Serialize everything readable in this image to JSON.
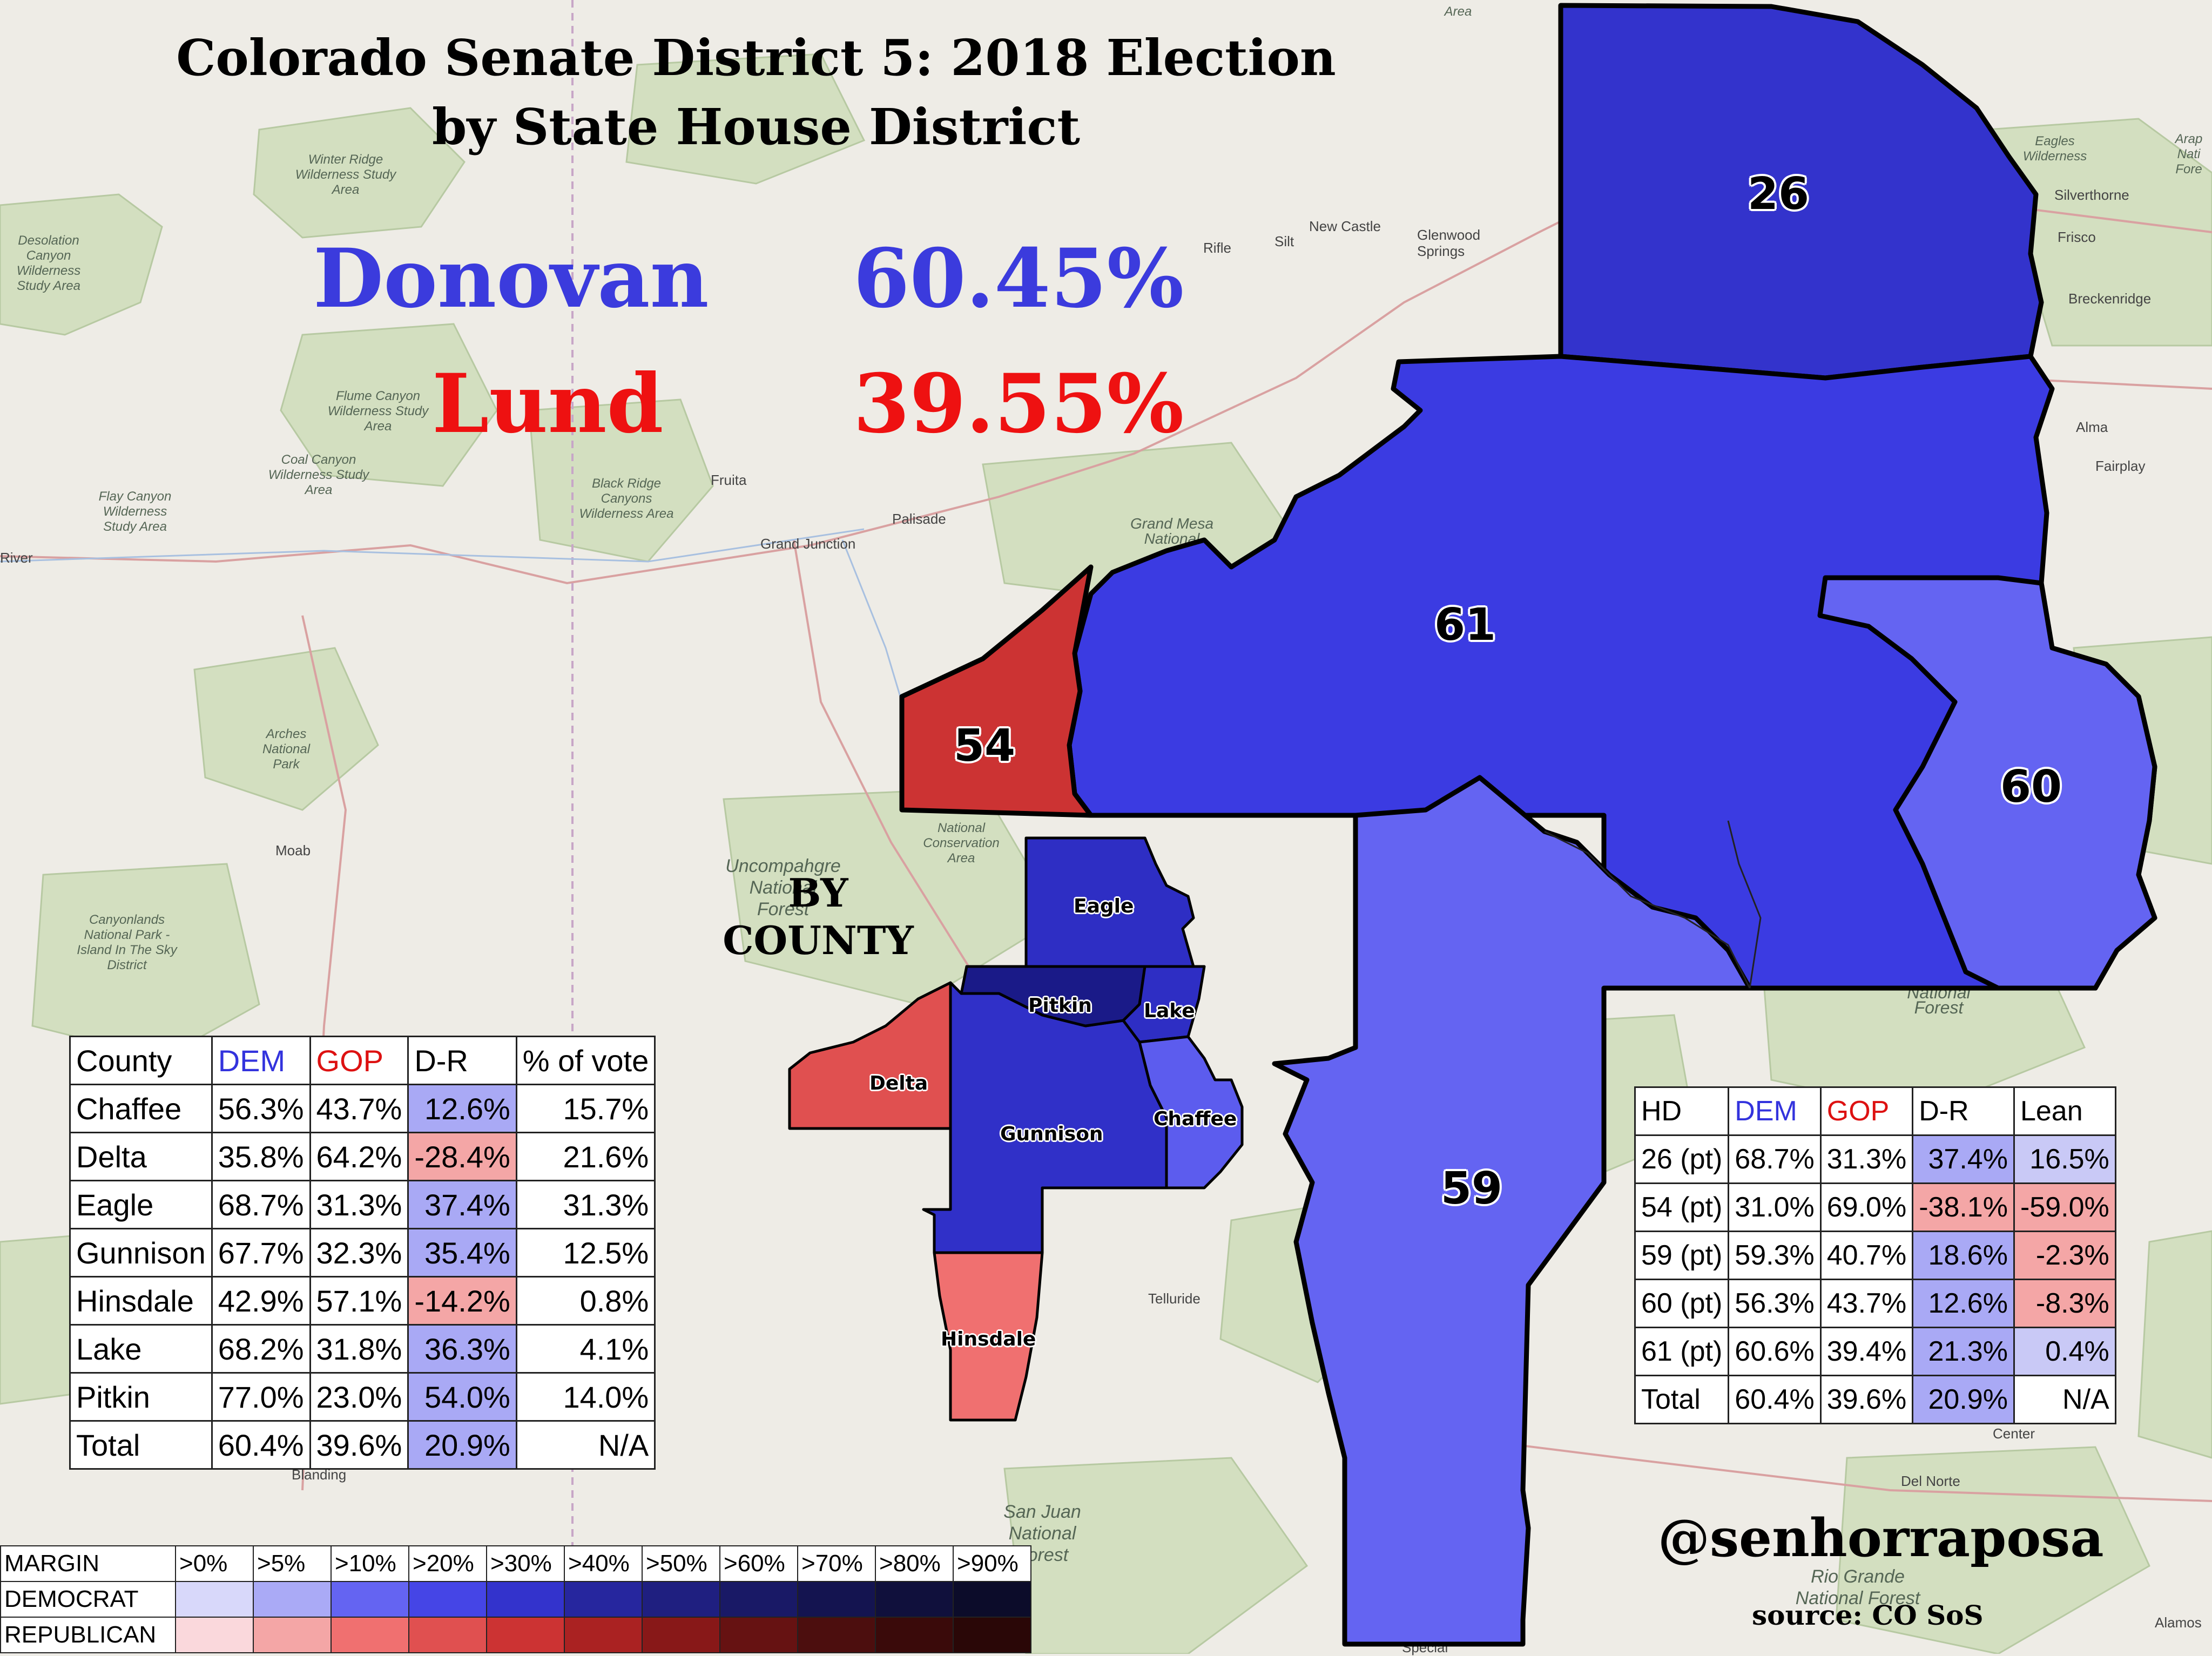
{
  "title": {
    "line1": "Colorado Senate District 5: 2018 Election",
    "line2": "by State House District"
  },
  "candidates": [
    {
      "name": "Donovan",
      "pct": "60.45%",
      "color": "#3b3bdd"
    },
    {
      "name": "Lund",
      "pct": "39.55%",
      "color": "#ee1111"
    }
  ],
  "by_county_label": {
    "line1": "BY",
    "line2": "COUNTY"
  },
  "house_districts": [
    {
      "id": "26",
      "fill": "#3333cc"
    },
    {
      "id": "61",
      "fill": "#3b3be2"
    },
    {
      "id": "60",
      "fill": "#6464f2"
    },
    {
      "id": "59",
      "fill": "#6464f2"
    },
    {
      "id": "54",
      "fill": "#cc3333"
    }
  ],
  "counties": [
    {
      "name": "Eagle",
      "fill": "#2e2ec4"
    },
    {
      "name": "Pitkin",
      "fill": "#1a1a88"
    },
    {
      "name": "Lake",
      "fill": "#2e2ec4"
    },
    {
      "name": "Delta",
      "fill": "#e05050"
    },
    {
      "name": "Gunnison",
      "fill": "#3030c8"
    },
    {
      "name": "Chaffee",
      "fill": "#5c5cee"
    },
    {
      "name": "Hinsdale",
      "fill": "#f07070"
    }
  ],
  "county_table": {
    "headers": [
      "County",
      "DEM",
      "GOP",
      "D-R",
      "% of vote"
    ],
    "rows": [
      [
        "Chaffee",
        "56.3%",
        "43.7%",
        "12.6%",
        "15.7%"
      ],
      [
        "Delta",
        "35.8%",
        "64.2%",
        "-28.4%",
        "21.6%"
      ],
      [
        "Eagle",
        "68.7%",
        "31.3%",
        "37.4%",
        "31.3%"
      ],
      [
        "Gunnison",
        "67.7%",
        "32.3%",
        "35.4%",
        "12.5%"
      ],
      [
        "Hinsdale",
        "42.9%",
        "57.1%",
        "-14.2%",
        "0.8%"
      ],
      [
        "Lake",
        "68.2%",
        "31.8%",
        "36.3%",
        "4.1%"
      ],
      [
        "Pitkin",
        "77.0%",
        "23.0%",
        "54.0%",
        "14.0%"
      ],
      [
        "Total",
        "60.4%",
        "39.6%",
        "20.9%",
        "N/A"
      ]
    ]
  },
  "hd_table": {
    "headers": [
      "HD",
      "DEM",
      "GOP",
      "D-R",
      "Lean"
    ],
    "rows": [
      [
        "26 (pt)",
        "68.7%",
        "31.3%",
        "37.4%",
        "16.5%"
      ],
      [
        "54 (pt)",
        "31.0%",
        "69.0%",
        "-38.1%",
        "-59.0%"
      ],
      [
        "59 (pt)",
        "59.3%",
        "40.7%",
        "18.6%",
        "-2.3%"
      ],
      [
        "60 (pt)",
        "56.3%",
        "43.7%",
        "12.6%",
        "-8.3%"
      ],
      [
        "61 (pt)",
        "60.6%",
        "39.4%",
        "21.3%",
        "0.4%"
      ],
      [
        "Total",
        "60.4%",
        "39.6%",
        "20.9%",
        "N/A"
      ]
    ]
  },
  "legend": {
    "header": "MARGIN",
    "columns": [
      ">0%",
      ">5%",
      ">10%",
      ">20%",
      ">30%",
      ">40%",
      ">50%",
      ">60%",
      ">70%",
      ">80%",
      ">90%"
    ],
    "rows": [
      {
        "label": "DEMOCRAT",
        "colors": [
          "#d8d8fa",
          "#aaaaf6",
          "#6464f2",
          "#4545e6",
          "#3333cc",
          "#26269e",
          "#1f1f80",
          "#191966",
          "#141450",
          "#10103c",
          "#0c0c2a"
        ]
      },
      {
        "label": "REPUBLICAN",
        "colors": [
          "#fad8dc",
          "#f4a6a6",
          "#f07070",
          "#e05050",
          "#cc3333",
          "#aa2222",
          "#881818",
          "#661212",
          "#4c0e0e",
          "#3a0a0a",
          "#2a0707"
        ]
      }
    ]
  },
  "handle": "@senhorraposa",
  "source": "source: CO SoS",
  "basemap": {
    "areas": [
      "Winter Ridge Wilderness Study Area",
      "Desolation Canyon Wilderness Study Area",
      "Flume Canyon Wilderness Study Area",
      "Coal Canyon Wilderness Study Area",
      "Flay Canyon Wilderness Study Area",
      "Black Ridge Canyons Wilderness Area",
      "Arches National Park",
      "Canyonlands National Park - Island In The Sky District",
      "Uncompahgre National Forest",
      "Grand Mesa National",
      "National Conservation Area",
      "San Juan National Forest",
      "Rio Grande National Forest",
      "National Forest",
      "Eagles Wilderness",
      "Arap Nati Fore",
      "Area"
    ],
    "cities": [
      "Grand Junction",
      "Fruita",
      "Palisade",
      "Moab",
      "Rifle",
      "Silt",
      "New Castle",
      "Glenwood Springs",
      "Silverthorne",
      "Frisco",
      "Breckenridge",
      "Alma",
      "Fairplay",
      "Telluride",
      "Center",
      "Del Norte",
      "Alamos",
      "River",
      "Blanding",
      "Special"
    ]
  }
}
